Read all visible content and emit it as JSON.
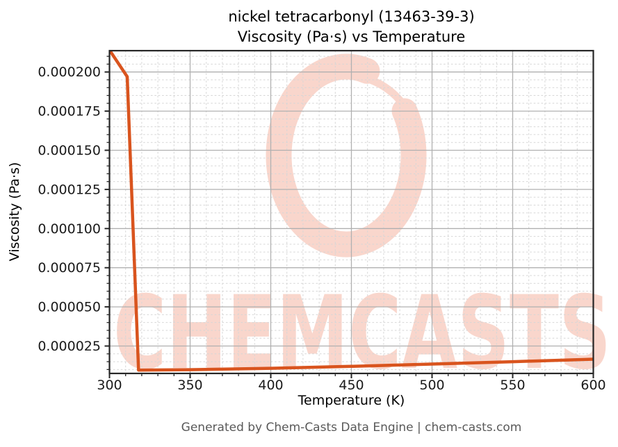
{
  "title": {
    "line1": "nickel tetracarbonyl (13463-39-3)",
    "line2": "Viscosity (Pa·s) vs Temperature"
  },
  "footer": {
    "credit": "Generated by Chem-Casts Data Engine | chem-casts.com"
  },
  "watermark": {
    "text": "CHEMCASTS"
  },
  "colors": {
    "line": "#d9541e",
    "grid_major": "#b0b0b0",
    "grid_minor": "#d6d6d6",
    "spine": "#262626",
    "tick_label": "#1a1a1a",
    "watermark_pink": "#f9d6cc",
    "footer_text": "#595959"
  },
  "chart_data": {
    "type": "line",
    "title": "nickel tetracarbonyl (13463-39-3) Viscosity (Pa·s) vs Temperature",
    "xlabel": "Temperature (K)",
    "ylabel": "Viscosity (Pa·s)",
    "xlim": [
      300,
      600
    ],
    "ylim": [
      7.5e-06,
      0.0002136
    ],
    "xticks": [
      300,
      350,
      400,
      450,
      500,
      550,
      600
    ],
    "xtick_labels": [
      "300",
      "350",
      "400",
      "450",
      "500",
      "550",
      "600"
    ],
    "yticks": [
      2.5e-05,
      5e-05,
      7.5e-05,
      0.0001,
      0.000125,
      0.00015,
      0.000175,
      0.0002
    ],
    "ytick_labels": [
      "0.000025",
      "0.000050",
      "0.000075",
      "0.000100",
      "0.000125",
      "0.000150",
      "0.000175",
      "0.000200"
    ],
    "x_minor_step": 10,
    "y_minor_step": 5e-06,
    "grid": {
      "major": true,
      "minor_dashed": true
    },
    "legend": "none",
    "series": [
      {
        "name": "Viscosity (Pa·s)",
        "color": "#d9541e",
        "points": [
          [
            300,
            0.000214
          ],
          [
            311,
            0.000197
          ],
          [
            318,
            9.6e-06
          ],
          [
            350,
            9.9e-06
          ],
          [
            400,
            1.08e-05
          ],
          [
            450,
            1.2e-05
          ],
          [
            500,
            1.35e-05
          ],
          [
            550,
            1.5e-05
          ],
          [
            600,
            1.66e-05
          ]
        ]
      }
    ]
  }
}
